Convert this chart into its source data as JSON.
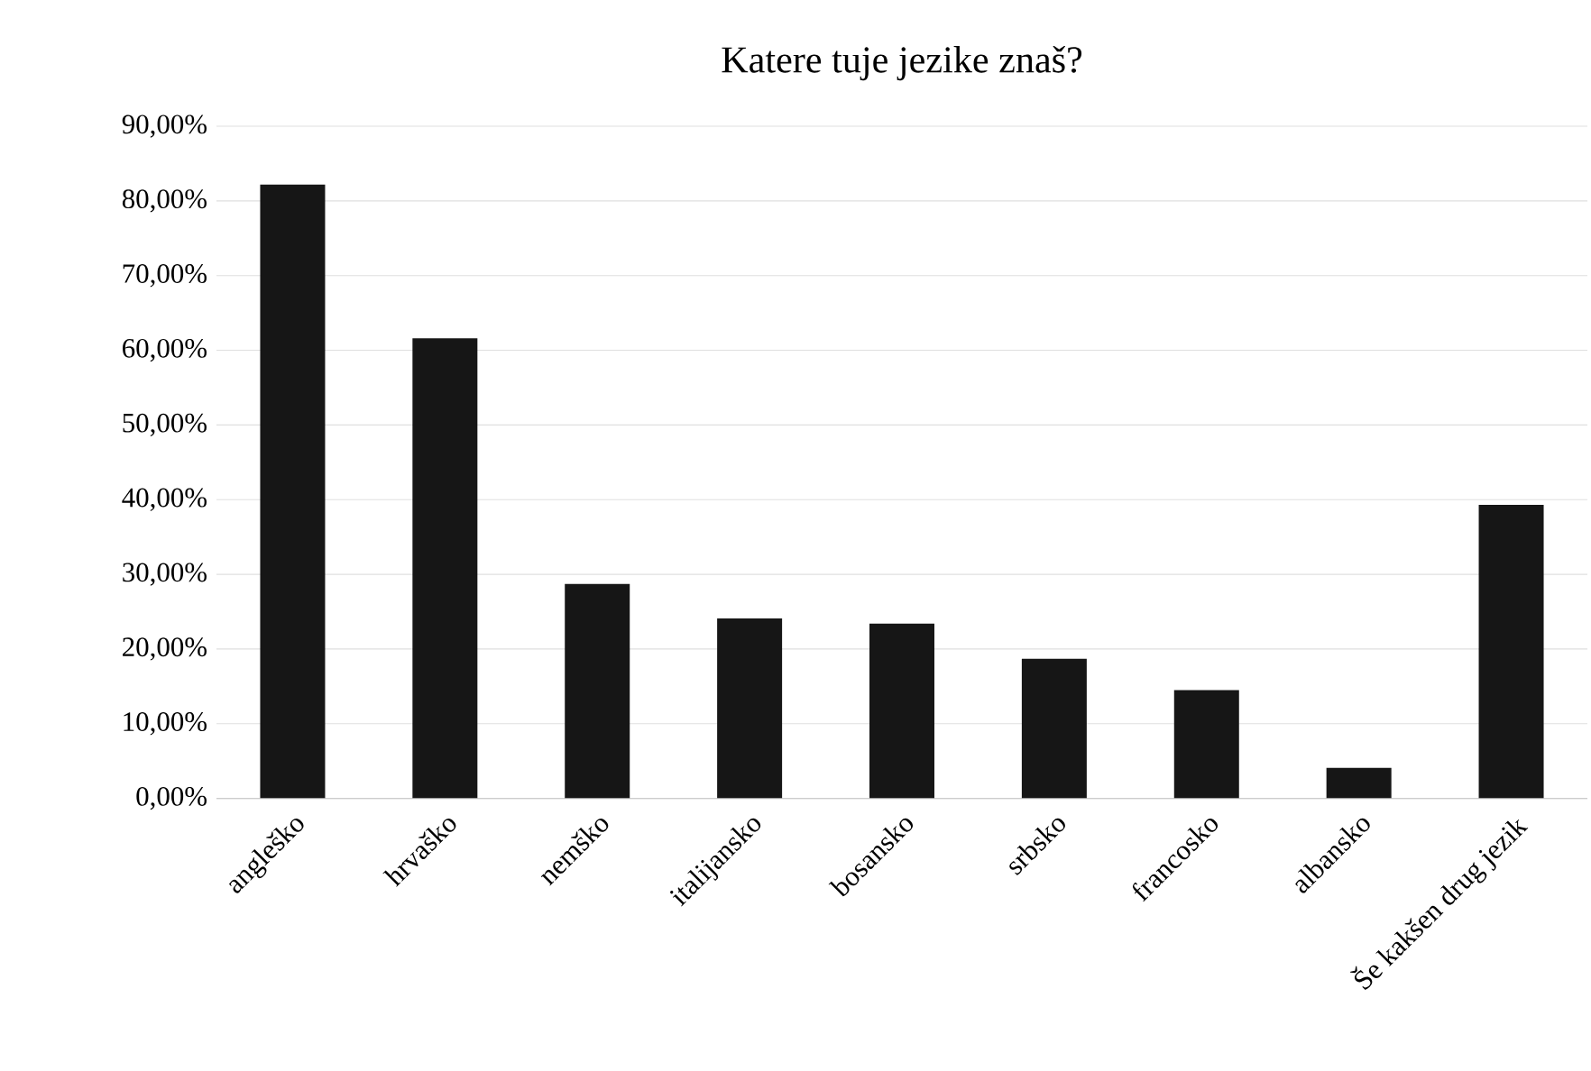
{
  "chart_data": {
    "type": "bar",
    "title": "Katere tuje jezike znaš?",
    "categories": [
      "angleško",
      "hrvaško",
      "nemško",
      "italijansko",
      "bosansko",
      "srbsko",
      "francosko",
      "albansko",
      "Še kakšen drug jezik"
    ],
    "values": [
      82.2,
      61.6,
      28.7,
      24.1,
      23.4,
      18.7,
      14.5,
      4.1,
      39.3
    ],
    "color": "#161616",
    "ylim": [
      0,
      90
    ],
    "yticks": [
      {
        "value": 0,
        "label": "0,00%"
      },
      {
        "value": 10,
        "label": "10,00%"
      },
      {
        "value": 20,
        "label": "20,00%"
      },
      {
        "value": 30,
        "label": "30,00%"
      },
      {
        "value": 40,
        "label": "40,00%"
      },
      {
        "value": 50,
        "label": "50,00%"
      },
      {
        "value": 60,
        "label": "60,00%"
      },
      {
        "value": 70,
        "label": "70,00%"
      },
      {
        "value": 80,
        "label": "80,00%"
      },
      {
        "value": 90,
        "label": "90,00%"
      }
    ],
    "grid": "y"
  }
}
